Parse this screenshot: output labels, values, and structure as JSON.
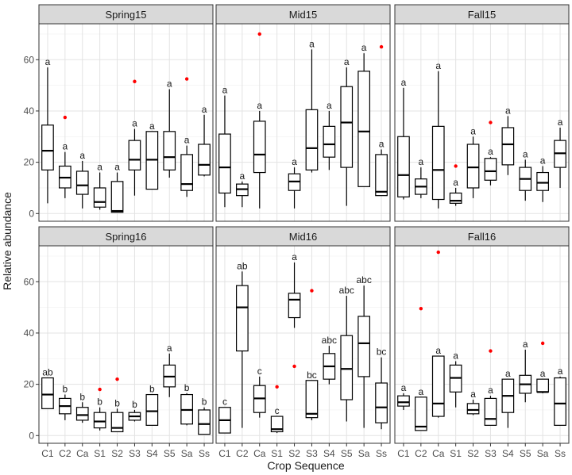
{
  "chart_data": {
    "type": "boxplot",
    "xlabel": "Crop Sequence",
    "ylabel": "Relative abundance",
    "ylim": [
      -3,
      74
    ],
    "yticks": [
      0,
      20,
      40,
      60
    ],
    "categories": [
      "C1",
      "C2",
      "Ca",
      "S1",
      "S2",
      "S3",
      "S4",
      "S5",
      "Sa",
      "Ss"
    ],
    "outlier_color": "#ff0000",
    "panels": [
      {
        "title": "Spring15",
        "boxes": [
          {
            "cat": "C1",
            "lo": 4,
            "q1": 17,
            "med": 24.5,
            "q3": 34.5,
            "hi": 57,
            "label": "a",
            "outliers": []
          },
          {
            "cat": "C2",
            "lo": 6,
            "q1": 10,
            "med": 14,
            "q3": 18.5,
            "hi": 24,
            "label": "a",
            "outliers": [
              37.5
            ]
          },
          {
            "cat": "Ca",
            "lo": 2,
            "q1": 7.5,
            "med": 11,
            "q3": 16.5,
            "hi": 20.5,
            "label": "a",
            "outliers": []
          },
          {
            "cat": "S1",
            "lo": 1.5,
            "q1": 2.5,
            "med": 4.5,
            "q3": 10,
            "hi": 16,
            "label": "a",
            "outliers": []
          },
          {
            "cat": "S2",
            "lo": 0.5,
            "q1": 0.5,
            "med": 1,
            "q3": 12.5,
            "hi": 16,
            "label": "a",
            "outliers": []
          },
          {
            "cat": "S3",
            "lo": 7,
            "q1": 17,
            "med": 21,
            "q3": 28.5,
            "hi": 33,
            "label": "a",
            "outliers": [
              51.5
            ]
          },
          {
            "cat": "S4",
            "lo": 9.5,
            "q1": 9.5,
            "med": 21,
            "q3": 32,
            "hi": 32,
            "label": "a",
            "outliers": []
          },
          {
            "cat": "S5",
            "lo": 14,
            "q1": 17,
            "med": 22,
            "q3": 32,
            "hi": 48.5,
            "label": "a",
            "outliers": []
          },
          {
            "cat": "Sa",
            "lo": 6.5,
            "q1": 9,
            "med": 11.5,
            "q3": 23,
            "hi": 26.5,
            "label": "a",
            "outliers": [
              52.5
            ]
          },
          {
            "cat": "Ss",
            "lo": 14.5,
            "q1": 15,
            "med": 19,
            "q3": 27,
            "hi": 38.5,
            "label": "a",
            "outliers": []
          }
        ]
      },
      {
        "title": "Mid15",
        "boxes": [
          {
            "cat": "C1",
            "lo": 2.5,
            "q1": 8,
            "med": 18,
            "q3": 31,
            "hi": 46,
            "label": "a",
            "outliers": []
          },
          {
            "cat": "C2",
            "lo": 2.5,
            "q1": 7,
            "med": 9.5,
            "q3": 11.5,
            "hi": 12.5,
            "label": "a",
            "outliers": []
          },
          {
            "cat": "Ca",
            "lo": 2,
            "q1": 16,
            "med": 23,
            "q3": 36,
            "hi": 40,
            "label": "a",
            "outliers": [
              70
            ]
          },
          {
            "cat": "S1",
            "lo": null,
            "q1": null,
            "med": null,
            "q3": null,
            "hi": null,
            "label": "",
            "outliers": []
          },
          {
            "cat": "S2",
            "lo": 2,
            "q1": 9,
            "med": 12.5,
            "q3": 15.5,
            "hi": 18,
            "label": "a",
            "outliers": []
          },
          {
            "cat": "S3",
            "lo": 16,
            "q1": 17,
            "med": 25.5,
            "q3": 40.5,
            "hi": 64,
            "label": "a",
            "outliers": []
          },
          {
            "cat": "S4",
            "lo": 17,
            "q1": 22,
            "med": 27,
            "q3": 34,
            "hi": 40,
            "label": "a",
            "outliers": []
          },
          {
            "cat": "S5",
            "lo": 3,
            "q1": 18,
            "med": 35.5,
            "q3": 49.5,
            "hi": 57,
            "label": "a",
            "outliers": []
          },
          {
            "cat": "Sa",
            "lo": 10.5,
            "q1": 10.5,
            "med": 32,
            "q3": 55.5,
            "hi": 62.5,
            "label": "a",
            "outliers": []
          },
          {
            "cat": "Ss",
            "lo": 7,
            "q1": 7,
            "med": 8.5,
            "q3": 23,
            "hi": 25,
            "label": "a",
            "outliers": [
              65
            ]
          }
        ]
      },
      {
        "title": "Fall15",
        "boxes": [
          {
            "cat": "C1",
            "lo": 5.5,
            "q1": 6.5,
            "med": 15,
            "q3": 30,
            "hi": 49,
            "label": "a",
            "outliers": []
          },
          {
            "cat": "C2",
            "lo": 6,
            "q1": 7.5,
            "med": 10.5,
            "q3": 13.5,
            "hi": 18,
            "label": "a",
            "outliers": []
          },
          {
            "cat": "Ca",
            "lo": 2,
            "q1": 5.5,
            "med": 17,
            "q3": 34,
            "hi": 55.5,
            "label": "a",
            "outliers": []
          },
          {
            "cat": "S1",
            "lo": 3,
            "q1": 4,
            "med": 5,
            "q3": 8,
            "hi": 10,
            "label": "a",
            "outliers": [
              18.5
            ]
          },
          {
            "cat": "S2",
            "lo": 6,
            "q1": 10,
            "med": 18,
            "q3": 27,
            "hi": 30,
            "label": "a",
            "outliers": []
          },
          {
            "cat": "S3",
            "lo": 11,
            "q1": 13,
            "med": 16.5,
            "q3": 21.5,
            "hi": 22,
            "label": "a",
            "outliers": [
              35.5
            ]
          },
          {
            "cat": "S4",
            "lo": 15,
            "q1": 19,
            "med": 27,
            "q3": 33.5,
            "hi": 38,
            "label": "a",
            "outliers": []
          },
          {
            "cat": "S5",
            "lo": 5,
            "q1": 9,
            "med": 13.5,
            "q3": 18,
            "hi": 21,
            "label": "a",
            "outliers": []
          },
          {
            "cat": "Sa",
            "lo": 4.5,
            "q1": 9,
            "med": 12,
            "q3": 16,
            "hi": 18.5,
            "label": "a",
            "outliers": []
          },
          {
            "cat": "Ss",
            "lo": 10,
            "q1": 18,
            "med": 23.5,
            "q3": 28.5,
            "hi": 33.5,
            "label": "a",
            "outliers": []
          }
        ]
      },
      {
        "title": "Spring16",
        "boxes": [
          {
            "cat": "C1",
            "lo": 10.5,
            "q1": 10.5,
            "med": 16,
            "q3": 22.5,
            "hi": 22.5,
            "label": "ab",
            "outliers": []
          },
          {
            "cat": "C2",
            "lo": 6,
            "q1": 8.5,
            "med": 11.5,
            "q3": 14.5,
            "hi": 16,
            "label": "b",
            "outliers": []
          },
          {
            "cat": "Ca",
            "lo": 5,
            "q1": 6,
            "med": 8,
            "q3": 11,
            "hi": 13,
            "label": "b",
            "outliers": []
          },
          {
            "cat": "S1",
            "lo": 2,
            "q1": 3,
            "med": 5.5,
            "q3": 9,
            "hi": 11,
            "label": "b",
            "outliers": [
              18
            ]
          },
          {
            "cat": "S2",
            "lo": 1.5,
            "q1": 1.5,
            "med": 3,
            "q3": 9,
            "hi": 10.5,
            "label": "b",
            "outliers": [
              22
            ]
          },
          {
            "cat": "S3",
            "lo": 5.5,
            "q1": 6,
            "med": 7.5,
            "q3": 9,
            "hi": 10,
            "label": "b",
            "outliers": []
          },
          {
            "cat": "S4",
            "lo": 4,
            "q1": 4,
            "med": 9.5,
            "q3": 16,
            "hi": 16,
            "label": "b",
            "outliers": []
          },
          {
            "cat": "S5",
            "lo": 15,
            "q1": 19,
            "med": 23,
            "q3": 27.5,
            "hi": 32,
            "label": "a",
            "outliers": []
          },
          {
            "cat": "Sa",
            "lo": 4,
            "q1": 4.5,
            "med": 10,
            "q3": 16,
            "hi": 16.5,
            "label": "b",
            "outliers": []
          },
          {
            "cat": "Ss",
            "lo": 0.5,
            "q1": 0.5,
            "med": 4.5,
            "q3": 10,
            "hi": 11,
            "label": "b",
            "outliers": []
          }
        ]
      },
      {
        "title": "Mid16",
        "boxes": [
          {
            "cat": "C1",
            "lo": 1,
            "q1": 1,
            "med": 6,
            "q3": 11,
            "hi": 11,
            "label": "c",
            "outliers": []
          },
          {
            "cat": "C2",
            "lo": 3,
            "q1": 33,
            "med": 50,
            "q3": 58.5,
            "hi": 64,
            "label": "ab",
            "outliers": []
          },
          {
            "cat": "Ca",
            "lo": 7,
            "q1": 9,
            "med": 14.5,
            "q3": 19.5,
            "hi": 23,
            "label": "c",
            "outliers": []
          },
          {
            "cat": "S1",
            "lo": 1,
            "q1": 1.5,
            "med": 2.5,
            "q3": 7.5,
            "hi": 7.5,
            "label": "c",
            "outliers": [
              19
            ]
          },
          {
            "cat": "S2",
            "lo": 42,
            "q1": 46,
            "med": 53,
            "q3": 55.5,
            "hi": 67.5,
            "label": "a",
            "outliers": [
              27
            ]
          },
          {
            "cat": "S3",
            "lo": 6,
            "q1": 7,
            "med": 8.5,
            "q3": 21.5,
            "hi": 21.5,
            "label": "bc",
            "outliers": [
              56.5
            ]
          },
          {
            "cat": "S4",
            "lo": 20,
            "q1": 22,
            "med": 27,
            "q3": 32,
            "hi": 35,
            "label": "abc",
            "outliers": []
          },
          {
            "cat": "S5",
            "lo": 5.5,
            "q1": 14,
            "med": 26,
            "q3": 39,
            "hi": 54.5,
            "label": "abc",
            "outliers": []
          },
          {
            "cat": "Sa",
            "lo": 3,
            "q1": 23,
            "med": 36,
            "q3": 46.5,
            "hi": 58.5,
            "label": "abc",
            "outliers": []
          },
          {
            "cat": "Ss",
            "lo": 2.5,
            "q1": 5,
            "med": 11,
            "q3": 20.5,
            "hi": 30.5,
            "label": "bc",
            "outliers": []
          }
        ]
      },
      {
        "title": "Fall16",
        "boxes": [
          {
            "cat": "C1",
            "lo": 10,
            "q1": 11.5,
            "med": 13,
            "q3": 15.5,
            "hi": 16.5,
            "label": "a",
            "outliers": []
          },
          {
            "cat": "C2",
            "lo": 2,
            "q1": 2,
            "med": 3.5,
            "q3": 15,
            "hi": 15,
            "label": "a",
            "outliers": [
              49.5
            ]
          },
          {
            "cat": "Ca",
            "lo": 7,
            "q1": 7.5,
            "med": 12.5,
            "q3": 31,
            "hi": 31,
            "label": "a",
            "outliers": [
              71.5
            ]
          },
          {
            "cat": "S1",
            "lo": 11,
            "q1": 17,
            "med": 22.5,
            "q3": 27.5,
            "hi": 29,
            "label": "a",
            "outliers": []
          },
          {
            "cat": "S2",
            "lo": 8,
            "q1": 8.5,
            "med": 10,
            "q3": 12.5,
            "hi": 14,
            "label": "a",
            "outliers": []
          },
          {
            "cat": "S3",
            "lo": 4,
            "q1": 4,
            "med": 6.5,
            "q3": 14.5,
            "hi": 15.5,
            "label": "a",
            "outliers": [
              33
            ]
          },
          {
            "cat": "S4",
            "lo": 3,
            "q1": 9,
            "med": 15.5,
            "q3": 22,
            "hi": 22,
            "label": "a",
            "outliers": []
          },
          {
            "cat": "S5",
            "lo": 13,
            "q1": 16.5,
            "med": 20,
            "q3": 23.5,
            "hi": 33.5,
            "label": "a",
            "outliers": []
          },
          {
            "cat": "Sa",
            "lo": 16.5,
            "q1": 17,
            "med": 17,
            "q3": 22,
            "hi": 22,
            "label": "a",
            "outliers": [
              36
            ]
          },
          {
            "cat": "Ss",
            "lo": 4,
            "q1": 4,
            "med": 12.5,
            "q3": 22.5,
            "hi": 23,
            "label": "a",
            "outliers": []
          }
        ]
      }
    ]
  }
}
